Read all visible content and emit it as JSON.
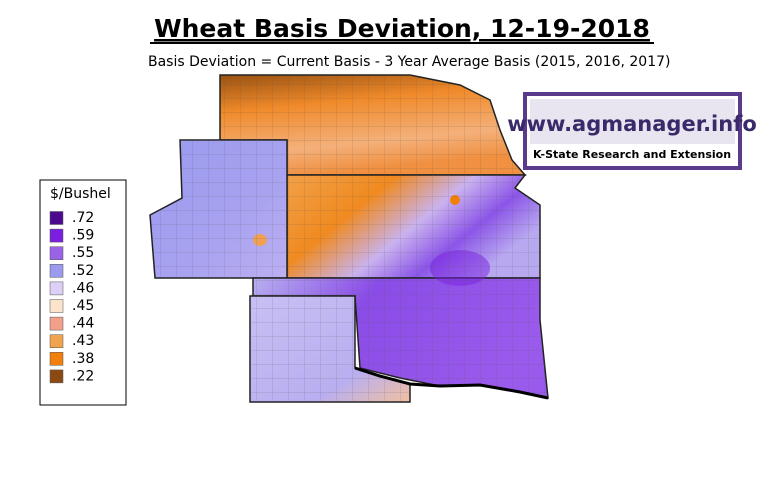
{
  "header": {
    "title": "Wheat Basis Deviation, 12-19-2018",
    "subtitle": "Basis Deviation = Current Basis - 3 Year Average Basis (2015, 2016, 2017)"
  },
  "legend": {
    "title": "$/Bushel",
    "items": [
      {
        "label": ".72",
        "color": "#4b0b8f"
      },
      {
        "label": ".59",
        "color": "#7a1fe0"
      },
      {
        "label": ".55",
        "color": "#9a62e6"
      },
      {
        "label": ".52",
        "color": "#9a9aee"
      },
      {
        "label": ".46",
        "color": "#ddd0f6"
      },
      {
        "label": ".45",
        "color": "#fbe3cc"
      },
      {
        "label": ".44",
        "color": "#f2a08a"
      },
      {
        "label": ".43",
        "color": "#f0a24e"
      },
      {
        "label": ".38",
        "color": "#f07f0c"
      },
      {
        "label": ".22",
        "color": "#8b4a12"
      }
    ]
  },
  "logo": {
    "url": "www.agmanager.info",
    "org": "K-State Research and Extension"
  }
}
